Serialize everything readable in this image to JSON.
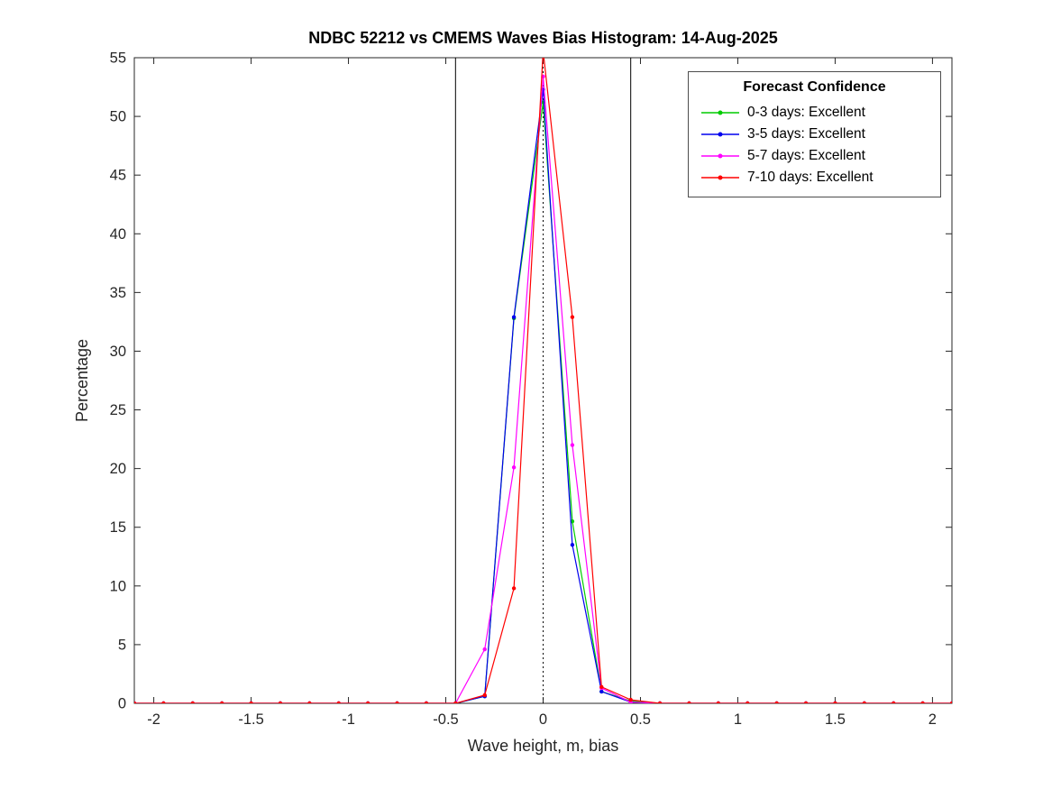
{
  "chart_data": {
    "type": "line",
    "title": "NDBC 52212 vs CMEMS Waves Bias Histogram: 14-Aug-2025",
    "xlabel": "Wave height, m, bias",
    "ylabel": "Percentage",
    "xlim": [
      -2.1,
      2.1
    ],
    "ylim": [
      0,
      55
    ],
    "xticks": [
      -2,
      -1.5,
      -1,
      -0.5,
      0,
      0.5,
      1,
      1.5,
      2
    ],
    "yticks": [
      0,
      5,
      10,
      15,
      20,
      25,
      30,
      35,
      40,
      45,
      50,
      55
    ],
    "grid": false,
    "x": [
      -2.1,
      -1.95,
      -1.8,
      -1.65,
      -1.5,
      -1.35,
      -1.2,
      -1.05,
      -0.9,
      -0.75,
      -0.6,
      -0.45,
      -0.3,
      -0.15,
      0,
      0.15,
      0.3,
      0.45,
      0.6,
      0.75,
      0.9,
      1.05,
      1.2,
      1.35,
      1.5,
      1.65,
      1.8,
      1.95,
      2.1
    ],
    "series": [
      {
        "name": "0-3 days: Excellent",
        "color": "#00cc00",
        "values": [
          0,
          0,
          0,
          0,
          0,
          0,
          0,
          0,
          0,
          0,
          0,
          0,
          0.6,
          32.8,
          51.2,
          15.5,
          1.0,
          0.2,
          0,
          0,
          0,
          0,
          0,
          0,
          0,
          0,
          0,
          0,
          0
        ]
      },
      {
        "name": "3-5 days: Excellent",
        "color": "#0000ee",
        "values": [
          0,
          0,
          0,
          0,
          0,
          0,
          0,
          0,
          0,
          0,
          0,
          0,
          0.6,
          32.9,
          52.3,
          13.5,
          1.0,
          0.1,
          0,
          0,
          0,
          0,
          0,
          0,
          0,
          0,
          0,
          0,
          0
        ]
      },
      {
        "name": "5-7 days: Excellent",
        "color": "#ff00ff",
        "values": [
          0,
          0,
          0,
          0,
          0,
          0,
          0,
          0,
          0,
          0,
          0,
          0,
          4.6,
          20.1,
          53.4,
          22.0,
          1.3,
          0.1,
          0,
          0,
          0,
          0,
          0,
          0,
          0,
          0,
          0,
          0,
          0
        ]
      },
      {
        "name": "7-10 days: Excellent",
        "color": "#ff0000",
        "values": [
          0,
          0,
          0,
          0,
          0,
          0,
          0,
          0,
          0,
          0,
          0,
          0,
          0.7,
          9.8,
          55.6,
          32.9,
          1.4,
          0.3,
          0,
          0,
          0,
          0,
          0,
          0,
          0,
          0,
          0,
          0,
          0
        ]
      }
    ],
    "vlines": [
      {
        "x": -0.45,
        "style": "solid",
        "color": "#000000"
      },
      {
        "x": 0.45,
        "style": "solid",
        "color": "#000000"
      },
      {
        "x": 0,
        "style": "dotted",
        "color": "#000000"
      }
    ],
    "legend": {
      "title": "Forecast Confidence",
      "position": "top-right"
    }
  }
}
